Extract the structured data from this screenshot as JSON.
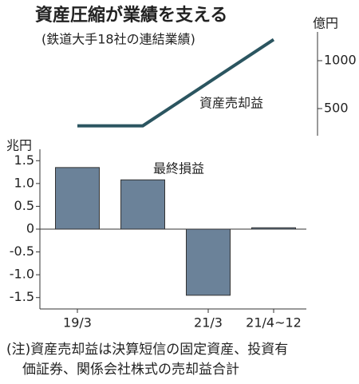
{
  "title": "資産圧縮が業績を支える",
  "subtitle": "(鉄道大手18社の連結業績)",
  "note": [
    "(注)資産売却益は決算短信の固定資産、投資有",
    "価証券、関係会社株式の売却益合計"
  ],
  "chart_data": [
    {
      "type": "line",
      "label": "資産売却益",
      "unit": "億円",
      "color": "#2b5560",
      "values": [
        320,
        320,
        770,
        1220
      ],
      "ylim": [
        250,
        1250
      ],
      "yticks": [
        500,
        1000
      ]
    },
    {
      "type": "bar",
      "label": "最終損益",
      "unit": "兆円",
      "color": "#6b8299",
      "categories": [
        "19/3",
        null,
        "21/3",
        "21/4~12"
      ],
      "values": [
        1.35,
        1.08,
        -1.45,
        0.03
      ],
      "ylim": [
        -1.75,
        1.75
      ],
      "yticks": [
        {
          "value": 1.5,
          "label": "1.5"
        },
        {
          "value": 1,
          "label": "1.0"
        },
        {
          "value": 0.5,
          "label": "0.5"
        },
        0,
        {
          "value": -0.5,
          "label": "-0.5"
        },
        {
          "value": -1,
          "label": "-1.0"
        },
        {
          "value": -1.5,
          "label": "-1.5"
        }
      ]
    }
  ]
}
